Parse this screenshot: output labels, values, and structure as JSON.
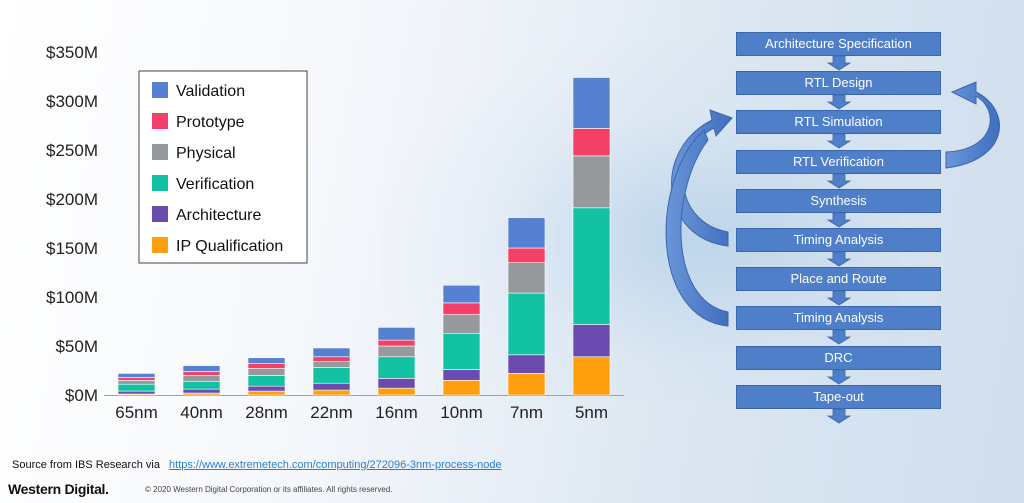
{
  "chart_data": {
    "type": "bar",
    "stacked": true,
    "title": "",
    "xlabel": "",
    "ylabel": "",
    "ylim": [
      0,
      350
    ],
    "yticks": [
      0,
      50,
      100,
      150,
      200,
      250,
      300,
      350
    ],
    "ytick_labels": [
      "$0M",
      "$50M",
      "$100M",
      "$150M",
      "$200M",
      "$250M",
      "$300M",
      "$350M"
    ],
    "categories": [
      "65nm",
      "40nm",
      "28nm",
      "22nm",
      "16nm",
      "10nm",
      "7nm",
      "5nm"
    ],
    "legend_position": "top-left",
    "series": [
      {
        "name": "IP Qualification",
        "color": "#ff9f0d",
        "values": [
          1,
          2,
          4,
          5,
          7,
          15,
          22,
          39
        ]
      },
      {
        "name": "Architecture",
        "color": "#6a4bb0",
        "values": [
          3,
          4,
          5,
          7,
          10,
          11,
          19,
          33
        ]
      },
      {
        "name": "Verification",
        "color": "#12c2a2",
        "values": [
          7,
          8,
          11,
          16,
          22,
          37,
          63,
          119
        ]
      },
      {
        "name": "Physical",
        "color": "#969a9c",
        "values": [
          4,
          6,
          7,
          6,
          11,
          19,
          31,
          53
        ]
      },
      {
        "name": "Prototype",
        "color": "#f43f66",
        "values": [
          3,
          4,
          5,
          5,
          6,
          12,
          15,
          28
        ]
      },
      {
        "name": "Validation",
        "color": "#5680d2",
        "values": [
          4,
          6,
          6,
          9,
          13,
          18,
          31,
          52
        ]
      }
    ]
  },
  "flow": {
    "steps": [
      "Architecture Specification",
      "RTL Design",
      "RTL Simulation",
      "RTL Verification",
      "Synthesis",
      "Timing Analysis",
      "Place and Route",
      "Timing Analysis",
      "DRC",
      "Tape-out"
    ],
    "box_color": "#4f7fc9"
  },
  "footer": {
    "source_prefix": "Source from IBS Research via",
    "source_link": "https://www.extremetech.com/computing/272096-3nm-process-node",
    "brand": "Western Digital.",
    "copyright": "© 2020 Western Digital Corporation or its affiliates. All rights reserved."
  }
}
